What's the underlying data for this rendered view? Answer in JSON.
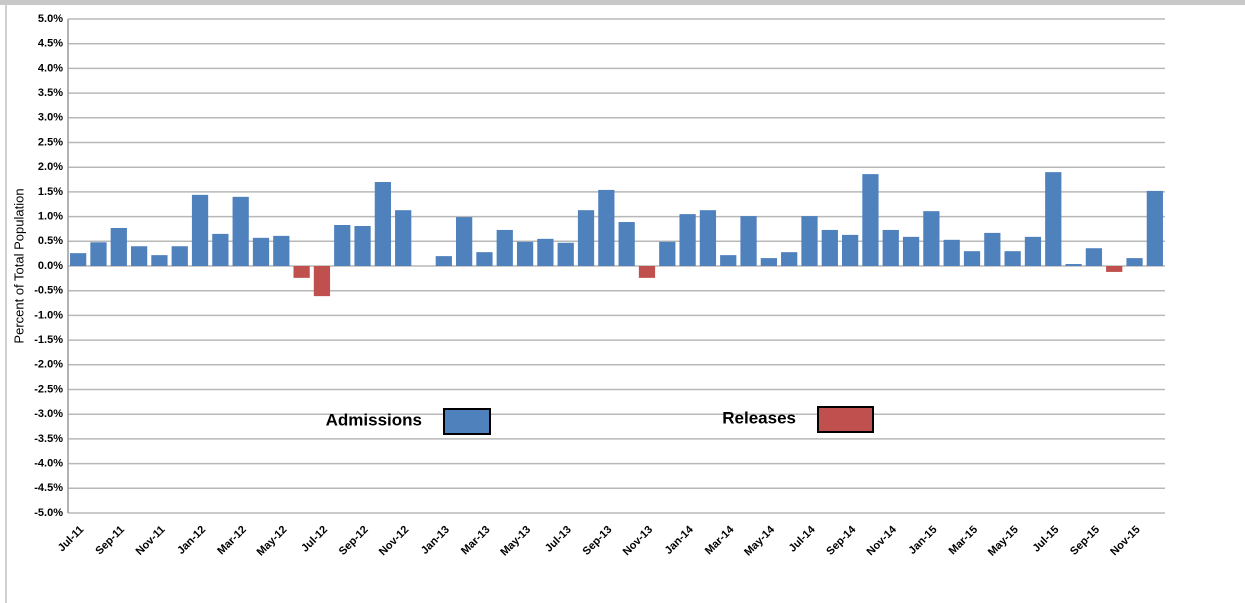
{
  "chart_data": {
    "type": "bar",
    "y_label": "Percent of Total Population",
    "categories": [
      "Jul-11",
      null,
      "Sep-11",
      null,
      "Nov-11",
      null,
      "Jan-12",
      null,
      "Mar-12",
      null,
      "May-12",
      null,
      "Jul-12",
      null,
      "Sep-12",
      null,
      "Nov-12",
      null,
      "Jan-13",
      null,
      "Mar-13",
      null,
      "May-13",
      null,
      "Jul-13",
      null,
      "Sep-13",
      null,
      "Nov-13",
      null,
      "Jan-14",
      null,
      "Mar-14",
      null,
      "May-14",
      null,
      "Jul-14",
      null,
      "Sep-14",
      null,
      "Nov-14",
      null,
      "Jan-15",
      null,
      "Mar-15",
      null,
      "May-15",
      null,
      "Jul-15",
      null,
      "Sep-15",
      null,
      "Nov-15",
      null
    ],
    "series": [
      {
        "name": "Admissions",
        "color": "#4f81bd",
        "values": [
          0.26,
          0.48,
          0.77,
          0.4,
          0.22,
          0.4,
          1.44,
          0.65,
          1.4,
          0.57,
          0.61,
          null,
          null,
          0.83,
          0.81,
          1.7,
          1.13,
          null,
          0.2,
          0.99,
          0.28,
          0.73,
          0.49,
          0.55,
          0.47,
          1.13,
          1.54,
          0.89,
          null,
          0.49,
          1.05,
          1.13,
          0.22,
          1.01,
          0.16,
          0.28,
          1.01,
          0.73,
          0.63,
          1.86,
          0.73,
          0.59,
          1.11,
          0.53,
          0.3,
          0.67,
          0.3,
          0.59,
          1.9,
          0.04,
          0.36,
          null,
          0.16,
          1.52
        ]
      },
      {
        "name": "Releases",
        "color": "#c0504d",
        "values": [
          null,
          null,
          null,
          null,
          null,
          null,
          null,
          null,
          null,
          null,
          null,
          -0.24,
          -0.61,
          null,
          null,
          null,
          null,
          null,
          null,
          null,
          null,
          null,
          null,
          null,
          null,
          null,
          null,
          null,
          -0.24,
          null,
          null,
          null,
          null,
          null,
          null,
          null,
          null,
          null,
          null,
          null,
          null,
          null,
          null,
          null,
          null,
          null,
          null,
          null,
          null,
          null,
          null,
          -0.12,
          null,
          null
        ]
      }
    ],
    "ylim": [
      -5,
      5
    ],
    "yticks": [
      {
        "value": 5,
        "label": "5.0%"
      },
      {
        "value": 4.5,
        "label": "4.5%"
      },
      {
        "value": 4,
        "label": "4.0%"
      },
      {
        "value": 3.5,
        "label": "3.5%"
      },
      {
        "value": 3,
        "label": "3.0%"
      },
      {
        "value": 2.5,
        "label": "2.5%"
      },
      {
        "value": 2,
        "label": "2.0%"
      },
      {
        "value": 1.5,
        "label": "1.5%"
      },
      {
        "value": 1,
        "label": "1.0%"
      },
      {
        "value": 0.5,
        "label": "0.5%"
      },
      {
        "value": 0,
        "label": "0.0%"
      },
      {
        "value": -0.5,
        "label": "-0.5%"
      },
      {
        "value": -1,
        "label": "-1.0%"
      },
      {
        "value": -1.5,
        "label": "-1.5%"
      },
      {
        "value": -2,
        "label": "-2.0%"
      },
      {
        "value": -2.5,
        "label": "-2.5%"
      },
      {
        "value": -3,
        "label": "-3.0%"
      },
      {
        "value": -3.5,
        "label": "-3.5%"
      },
      {
        "value": -4,
        "label": "-4.0%"
      },
      {
        "value": -4.5,
        "label": "-4.5%"
      },
      {
        "value": -5,
        "label": "-5.0%"
      }
    ],
    "grid": true
  }
}
